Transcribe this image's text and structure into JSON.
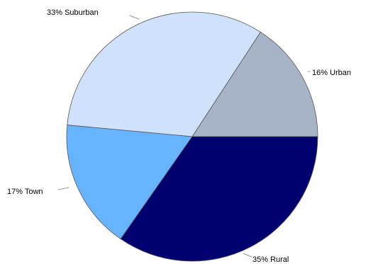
{
  "chart_data": {
    "type": "pie",
    "title": "",
    "start_angle_deg": 0,
    "direction": "counterclockwise",
    "slices": [
      {
        "name": "Urban",
        "value": 16,
        "label": "16% Urban",
        "color": "#a7b4c8"
      },
      {
        "name": "Suburban",
        "value": 33,
        "label": "33% Suburban",
        "color": "#cfe1fb"
      },
      {
        "name": "Town",
        "value": 17,
        "label": "17% Town",
        "color": "#66b3ff"
      },
      {
        "name": "Rural",
        "value": 35,
        "label": "35% Rural",
        "color": "#00006e"
      }
    ]
  }
}
